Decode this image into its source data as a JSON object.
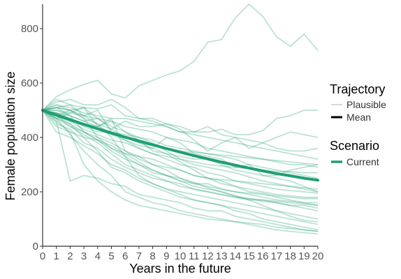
{
  "chart_data": {
    "type": "line",
    "xlabel": "Years in the future",
    "ylabel": "Female population size",
    "xlim": [
      0,
      20
    ],
    "ylim": [
      0,
      890
    ],
    "x": [
      0,
      1,
      2,
      3,
      4,
      5,
      6,
      7,
      8,
      9,
      10,
      11,
      12,
      13,
      14,
      15,
      16,
      17,
      18,
      19,
      20
    ],
    "x_tick_labels": [
      "0",
      "1",
      "2",
      "3",
      "4",
      "5",
      "6",
      "7",
      "8",
      "9",
      "10",
      "11",
      "12",
      "13",
      "14",
      "15",
      "16",
      "17",
      "18",
      "19",
      "20"
    ],
    "y_ticks": [
      0,
      200,
      400,
      600,
      800
    ],
    "y_tick_labels": [
      "0",
      "200",
      "400",
      "600",
      "800"
    ],
    "grid": false,
    "legend": {
      "placement": "right",
      "groups": [
        {
          "title": "Trajectory",
          "entries": [
            {
              "label": "Plausible",
              "style": "thin-light"
            },
            {
              "label": "Mean",
              "style": "thick-black"
            }
          ]
        },
        {
          "title": "Scenario",
          "entries": [
            {
              "label": "Current",
              "style": "thick-green"
            }
          ]
        }
      ]
    },
    "colors": {
      "scenario_current": "#1f9e72",
      "plausible_line": "#2aa679",
      "axis": "#333333",
      "legend_mean": "#000000",
      "legend_plausible": "#c8c8c8"
    },
    "mean_series": {
      "name": "Mean",
      "scenario": "Current",
      "values": [
        500,
        482,
        465,
        448,
        432,
        416,
        401,
        387,
        373,
        359,
        346,
        333,
        321,
        309,
        298,
        287,
        277,
        267,
        259,
        250,
        243
      ]
    },
    "plausible_series": [
      {
        "values": [
          500,
          550,
          575,
          595,
          610,
          560,
          545,
          590,
          610,
          630,
          645,
          680,
          750,
          760,
          840,
          890,
          845,
          770,
          735,
          780,
          720
        ]
      },
      {
        "values": [
          500,
          540,
          520,
          510,
          505,
          520,
          480,
          470,
          470,
          450,
          440,
          420,
          420,
          430,
          410,
          410,
          425,
          470,
          480,
          500,
          500
        ]
      },
      {
        "values": [
          500,
          530,
          540,
          520,
          520,
          540,
          510,
          470,
          460,
          440,
          420,
          420,
          440,
          410,
          400,
          390,
          380,
          400,
          420,
          410,
          400
        ]
      },
      {
        "values": [
          500,
          520,
          500,
          510,
          470,
          430,
          460,
          440,
          440,
          450,
          430,
          390,
          350,
          380,
          400,
          360,
          380,
          360,
          350,
          350,
          360
        ]
      },
      {
        "values": [
          500,
          510,
          520,
          480,
          500,
          420,
          390,
          370,
          360,
          400,
          380,
          340,
          330,
          320,
          290,
          300,
          260,
          260,
          280,
          290,
          300
        ]
      },
      {
        "values": [
          500,
          490,
          470,
          450,
          440,
          460,
          420,
          390,
          350,
          340,
          330,
          320,
          320,
          300,
          280,
          270,
          260,
          250,
          240,
          220,
          200
        ]
      },
      {
        "values": [
          500,
          470,
          490,
          510,
          440,
          470,
          350,
          330,
          300,
          290,
          280,
          260,
          250,
          240,
          220,
          200,
          195,
          180,
          170,
          160,
          150
        ]
      },
      {
        "values": [
          500,
          460,
          240,
          260,
          250,
          230,
          220,
          190,
          180,
          170,
          160,
          140,
          130,
          130,
          110,
          100,
          90,
          80,
          70,
          60,
          55
        ]
      },
      {
        "values": [
          500,
          420,
          400,
          370,
          340,
          300,
          280,
          250,
          230,
          210,
          200,
          190,
          180,
          170,
          160,
          150,
          140,
          130,
          120,
          110,
          100
        ]
      },
      {
        "values": [
          500,
          480,
          500,
          470,
          400,
          380,
          350,
          320,
          300,
          280,
          250,
          230,
          220,
          210,
          200,
          190,
          180,
          170,
          165,
          160,
          160
        ]
      },
      {
        "values": [
          500,
          450,
          430,
          380,
          360,
          320,
          290,
          270,
          250,
          240,
          230,
          210,
          200,
          190,
          180,
          170,
          170,
          160,
          150,
          150,
          140
        ]
      },
      {
        "values": [
          500,
          440,
          420,
          400,
          390,
          370,
          340,
          310,
          280,
          260,
          240,
          230,
          230,
          210,
          200,
          195,
          190,
          185,
          180,
          175,
          175
        ]
      },
      {
        "values": [
          500,
          510,
          480,
          420,
          390,
          350,
          320,
          300,
          270,
          260,
          250,
          235,
          215,
          200,
          185,
          170,
          150,
          130,
          110,
          95,
          90
        ]
      },
      {
        "values": [
          500,
          470,
          440,
          420,
          400,
          360,
          340,
          330,
          320,
          300,
          280,
          260,
          250,
          245,
          240,
          235,
          230,
          225,
          220,
          215,
          210
        ]
      },
      {
        "values": [
          500,
          500,
          480,
          460,
          470,
          440,
          420,
          400,
          380,
          350,
          320,
          300,
          290,
          280,
          270,
          255,
          240,
          230,
          220,
          210,
          200
        ]
      },
      {
        "values": [
          500,
          490,
          460,
          430,
          410,
          390,
          380,
          360,
          340,
          330,
          320,
          310,
          300,
          295,
          290,
          285,
          280,
          275,
          275,
          270,
          270
        ]
      },
      {
        "values": [
          500,
          480,
          450,
          400,
          350,
          290,
          270,
          240,
          220,
          200,
          180,
          170,
          160,
          150,
          130,
          120,
          100,
          90,
          80,
          70,
          60
        ]
      },
      {
        "values": [
          500,
          470,
          410,
          350,
          300,
          260,
          200,
          180,
          160,
          150,
          130,
          120,
          110,
          100,
          90,
          80,
          70,
          60,
          55,
          50,
          45
        ]
      },
      {
        "values": [
          500,
          460,
          420,
          300,
          240,
          200,
          170,
          150,
          140,
          130,
          120,
          110,
          100,
          95,
          90,
          85,
          80,
          70,
          65,
          60,
          55
        ]
      },
      {
        "values": [
          500,
          510,
          500,
          480,
          450,
          430,
          400,
          380,
          370,
          360,
          350,
          345,
          340,
          335,
          330,
          325,
          320,
          315,
          310,
          305,
          300
        ]
      },
      {
        "values": [
          500,
          500,
          490,
          480,
          470,
          460,
          440,
          430,
          420,
          400,
          390,
          380,
          360,
          350,
          340,
          330,
          320,
          310,
          300,
          300,
          290
        ]
      },
      {
        "values": [
          500,
          520,
          510,
          490,
          480,
          470,
          470,
          460,
          450,
          440,
          420,
          410,
          400,
          390,
          380,
          370,
          360,
          350,
          340,
          330,
          320
        ]
      },
      {
        "values": [
          500,
          490,
          470,
          440,
          420,
          420,
          410,
          400,
          390,
          370,
          360,
          350,
          340,
          330,
          320,
          300,
          290,
          280,
          270,
          260,
          250
        ]
      },
      {
        "values": [
          500,
          480,
          460,
          450,
          430,
          410,
          390,
          360,
          340,
          320,
          300,
          290,
          270,
          260,
          240,
          230,
          220,
          210,
          205,
          200,
          195
        ]
      },
      {
        "values": [
          500,
          470,
          450,
          420,
          390,
          360,
          330,
          300,
          280,
          260,
          240,
          220,
          210,
          200,
          185,
          175,
          165,
          160,
          150,
          140,
          130
        ]
      },
      {
        "values": [
          500,
          490,
          480,
          460,
          440,
          420,
          400,
          380,
          360,
          340,
          310,
          280,
          250,
          230,
          220,
          210,
          200,
          190,
          185,
          180,
          180
        ]
      },
      {
        "values": [
          500,
          510,
          500,
          470,
          450,
          400,
          330,
          260,
          230,
          210,
          190,
          170,
          160,
          150,
          140,
          130,
          120,
          110,
          100,
          90,
          80
        ]
      },
      {
        "values": [
          500,
          480,
          440,
          410,
          380,
          340,
          300,
          280,
          260,
          240,
          220,
          210,
          200,
          190,
          180,
          175,
          170,
          165,
          160,
          155,
          150
        ]
      }
    ]
  }
}
